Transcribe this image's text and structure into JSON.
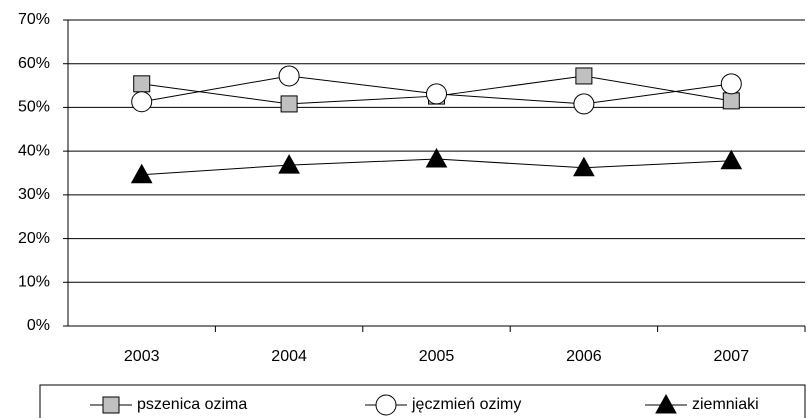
{
  "chart_data": {
    "type": "line",
    "categories": [
      "2003",
      "2004",
      "2005",
      "2006",
      "2007"
    ],
    "series": [
      {
        "name": "pszenica ozima",
        "color": "#c0c0c0",
        "marker": "square",
        "values": [
          55.4,
          50.8,
          52.6,
          57.2,
          51.5
        ]
      },
      {
        "name": "jęczmień ozimy",
        "color": "#ffffff",
        "marker": "circle",
        "values": [
          51.3,
          57.2,
          53.1,
          50.8,
          55.4
        ]
      },
      {
        "name": "ziemniaki",
        "color": "#000000",
        "marker": "triangle",
        "values": [
          34.6,
          36.8,
          38.2,
          36.2,
          37.8
        ]
      }
    ],
    "ylim": [
      0,
      70
    ],
    "yticks": [
      {
        "value": 0,
        "label": "0%"
      },
      {
        "value": 10,
        "label": "10%"
      },
      {
        "value": 20,
        "label": "20%"
      },
      {
        "value": 30,
        "label": "30%"
      },
      {
        "value": 40,
        "label": "40%"
      },
      {
        "value": 50,
        "label": "50%"
      },
      {
        "value": 60,
        "label": "60%"
      },
      {
        "value": 70,
        "label": "70%"
      }
    ],
    "grid": true,
    "legend": "bottom"
  }
}
